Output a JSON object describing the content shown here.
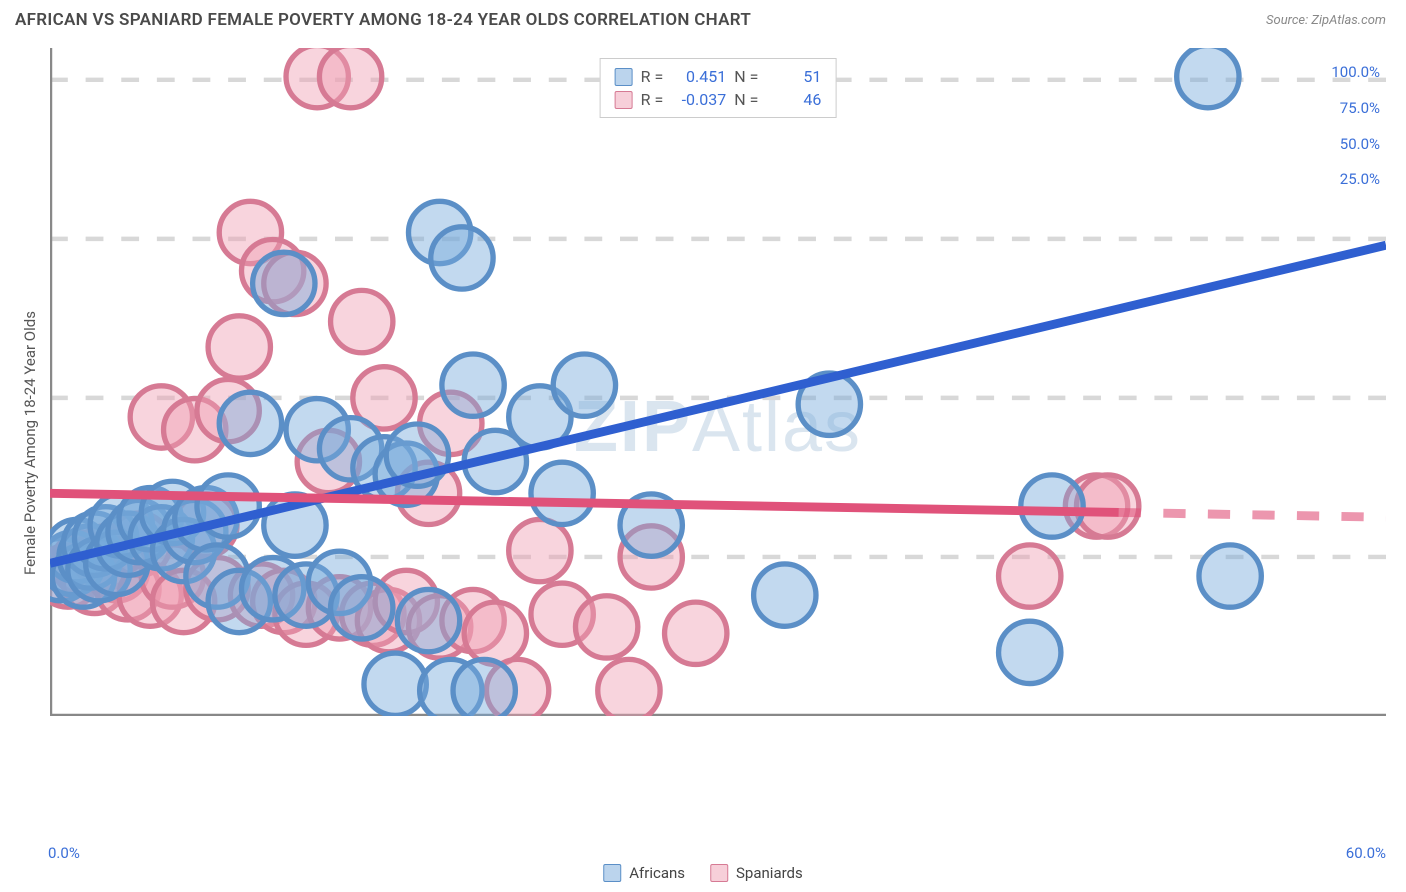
{
  "header": {
    "title": "AFRICAN VS SPANIARD FEMALE POVERTY AMONG 18-24 YEAR OLDS CORRELATION CHART",
    "source": "Source: ZipAtlas.com"
  },
  "watermark": {
    "part1": "ZIP",
    "part2": "Atlas"
  },
  "axes": {
    "y_label": "Female Poverty Among 18-24 Year Olds",
    "x_origin": "0.0%",
    "x_end": "60.0%",
    "xlim": [
      0,
      60
    ],
    "ylim": [
      0,
      105
    ],
    "y_ticks": [
      25.0,
      50.0,
      75.0,
      100.0
    ],
    "y_tick_labels": [
      "25.0%",
      "50.0%",
      "75.0%",
      "100.0%"
    ],
    "x_ticks": [
      0,
      10,
      20,
      30,
      40,
      50,
      60
    ],
    "grid_color": "#d8d8d8",
    "axis_color": "#888888"
  },
  "stats": {
    "series1": {
      "R_label": "R =",
      "R": "0.451",
      "N_label": "N =",
      "N": "51"
    },
    "series2": {
      "R_label": "R =",
      "R": "-0.037",
      "N_label": "N =",
      "N": "46"
    }
  },
  "legend": {
    "series1": "Africans",
    "series2": "Spaniards"
  },
  "series": {
    "africans": {
      "color_fill": "rgba(120,170,220,0.45)",
      "color_stroke": "#5b8fc7",
      "marker_radius": 7,
      "trend": {
        "x1": 0,
        "y1": 24,
        "x2": 60,
        "y2": 74,
        "color": "#2f5fd0",
        "width": 2
      },
      "points": [
        [
          0.5,
          23
        ],
        [
          1,
          24
        ],
        [
          1.2,
          26
        ],
        [
          1.5,
          22
        ],
        [
          1.8,
          25
        ],
        [
          2,
          27
        ],
        [
          2.2,
          23
        ],
        [
          2.5,
          28
        ],
        [
          3,
          24
        ],
        [
          3.2,
          30
        ],
        [
          3.5,
          27
        ],
        [
          4,
          29
        ],
        [
          4.5,
          31
        ],
        [
          5,
          28
        ],
        [
          5.5,
          32
        ],
        [
          6,
          26
        ],
        [
          6.5,
          29
        ],
        [
          7,
          31
        ],
        [
          7.5,
          22
        ],
        [
          8,
          33
        ],
        [
          8.5,
          18
        ],
        [
          9,
          46
        ],
        [
          10,
          20
        ],
        [
          10.5,
          68
        ],
        [
          11,
          30
        ],
        [
          11.5,
          19
        ],
        [
          12,
          45
        ],
        [
          13,
          21
        ],
        [
          13.5,
          42
        ],
        [
          14,
          17
        ],
        [
          15,
          39
        ],
        [
          15.5,
          5
        ],
        [
          16,
          38
        ],
        [
          16.5,
          41
        ],
        [
          17,
          15
        ],
        [
          17.5,
          76
        ],
        [
          18,
          4
        ],
        [
          18.5,
          72
        ],
        [
          19,
          52
        ],
        [
          19.5,
          4
        ],
        [
          20,
          40
        ],
        [
          22,
          47
        ],
        [
          23,
          35
        ],
        [
          24,
          52
        ],
        [
          27,
          30
        ],
        [
          33,
          19
        ],
        [
          35,
          49
        ],
        [
          44,
          10
        ],
        [
          45,
          33
        ],
        [
          52,
          100.5
        ],
        [
          53,
          22
        ]
      ]
    },
    "spaniards": {
      "color_fill": "rgba(240,160,180,0.45)",
      "color_stroke": "#d67a94",
      "marker_radius": 7,
      "trend": {
        "x1": 0,
        "y1": 35,
        "x2": 48,
        "y2": 32,
        "color": "#e0527a",
        "width": 2,
        "dash_extend_x": 60
      },
      "points": [
        [
          0.8,
          22
        ],
        [
          1.5,
          24
        ],
        [
          2,
          21
        ],
        [
          2.5,
          25
        ],
        [
          3,
          23
        ],
        [
          3.5,
          20
        ],
        [
          4,
          27
        ],
        [
          4.5,
          19
        ],
        [
          5,
          47
        ],
        [
          5.5,
          22
        ],
        [
          6,
          18
        ],
        [
          6.5,
          45
        ],
        [
          7,
          30
        ],
        [
          7.5,
          20
        ],
        [
          8,
          48
        ],
        [
          8.5,
          58
        ],
        [
          9,
          76
        ],
        [
          9.5,
          19
        ],
        [
          10,
          70
        ],
        [
          10.5,
          18
        ],
        [
          11,
          68
        ],
        [
          11.5,
          16
        ],
        [
          12,
          100.5
        ],
        [
          12.5,
          40
        ],
        [
          13,
          17
        ],
        [
          13.5,
          100.5
        ],
        [
          14,
          62
        ],
        [
          14.5,
          16
        ],
        [
          15,
          50
        ],
        [
          15.2,
          15
        ],
        [
          16,
          18
        ],
        [
          17,
          35
        ],
        [
          17.5,
          14
        ],
        [
          18,
          46
        ],
        [
          19,
          15
        ],
        [
          20,
          13
        ],
        [
          21,
          4
        ],
        [
          22,
          26
        ],
        [
          23,
          16
        ],
        [
          25,
          14
        ],
        [
          26,
          4
        ],
        [
          27,
          25
        ],
        [
          29,
          13
        ],
        [
          44,
          22
        ],
        [
          47,
          33
        ],
        [
          47.5,
          33
        ]
      ]
    }
  },
  "colors": {
    "background": "#ffffff",
    "title_color": "#4a4a4a",
    "source_color": "#888888"
  }
}
